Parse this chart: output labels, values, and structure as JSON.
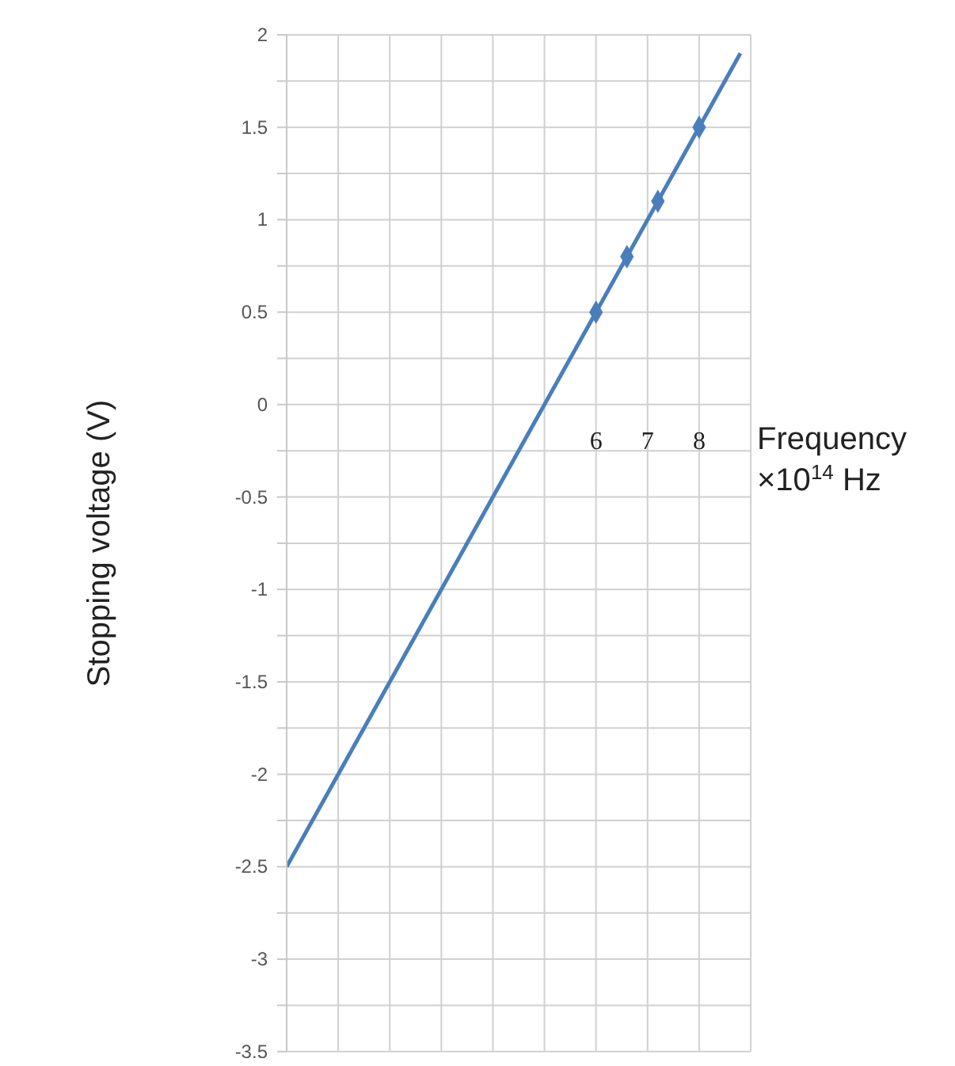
{
  "chart_data": {
    "type": "scatter",
    "ylabel": "Stopping voltage (V)",
    "xlabel": "Frequency\n×10$^{14}$ Hz",
    "xlim": [
      0,
      9
    ],
    "xticks": [
      {
        "value": 0,
        "label": null
      },
      {
        "value": 1,
        "label": null
      },
      {
        "value": 2,
        "label": null
      },
      {
        "value": 3,
        "label": null
      },
      {
        "value": 4,
        "label": null
      },
      {
        "value": 5,
        "label": null
      },
      6,
      7,
      8,
      {
        "value": 9,
        "label": null
      }
    ],
    "ylim": [
      -3.5,
      2
    ],
    "yticks": [
      -3.5,
      {
        "value": -3.25,
        "label": null
      },
      -3,
      {
        "value": -2.75,
        "label": null
      },
      -2.5,
      {
        "value": -2.25,
        "label": null
      },
      -2,
      {
        "value": -1.75,
        "label": null
      },
      -1.5,
      {
        "value": -1.25,
        "label": null
      },
      -1,
      {
        "value": -0.75,
        "label": null
      },
      -0.5,
      {
        "value": -0.25,
        "label": null
      },
      0,
      {
        "value": 0.25,
        "label": null
      },
      0.5,
      {
        "value": 0.75,
        "label": null
      },
      1,
      {
        "value": 1.25,
        "label": null
      },
      1.5,
      {
        "value": 1.75,
        "label": null
      },
      2
    ],
    "grid": true,
    "series": [
      {
        "color": "#4a7ebb",
        "marker": "diamond",
        "x": [
          6,
          6.6,
          7.2,
          8
        ],
        "values": [
          0.5,
          0.8,
          1.1,
          1.5
        ]
      },
      {
        "type": "line",
        "color": "#4a7ebb",
        "marker": "none",
        "line_style": "solid",
        "x": [
          0,
          8.8
        ],
        "values": [
          -2.5,
          1.9
        ]
      }
    ]
  }
}
